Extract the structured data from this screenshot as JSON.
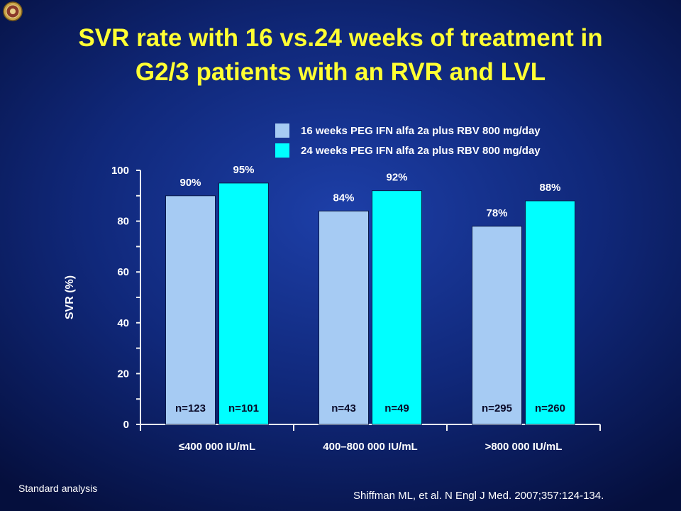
{
  "title": {
    "line1": "SVR rate with 16 vs.24 weeks of treatment in",
    "line2": "G2/3 patients with an RVR and LVL"
  },
  "colors": {
    "series1": "#a6cbf3",
    "series2": "#00ffff",
    "title": "#ffff33",
    "background": "#10287a"
  },
  "logo_icon": "seal-icon",
  "chart_data": {
    "type": "bar",
    "categories": [
      "≤400 000 IU/mL",
      "400–800 000 IU/mL",
      ">800 000 IU/mL"
    ],
    "series": [
      {
        "name": "16 weeks PEG IFN alfa 2a plus RBV 800 mg/day",
        "values": [
          90,
          84,
          78
        ],
        "labels": [
          "90%",
          "84%",
          "78%"
        ],
        "n_labels": [
          "n=123",
          "n=43",
          "n=295"
        ]
      },
      {
        "name": "24 weeks PEG IFN alfa 2a plus RBV 800 mg/day",
        "values": [
          95,
          92,
          88
        ],
        "labels": [
          "95%",
          "92%",
          "88%"
        ],
        "n_labels": [
          "n=101",
          "n=49",
          "n=260"
        ]
      }
    ],
    "ylabel": "SVR (%)",
    "xlabel": "",
    "ylim": [
      0,
      100
    ],
    "yticks": [
      "0",
      "20",
      "40",
      "60",
      "80",
      "100"
    ],
    "grid": false,
    "legend_position": "top-right"
  },
  "footnotes": {
    "left": "Standard analysis",
    "right": "Shiffman ML, et al. N Engl J Med. 2007;357:124-134."
  }
}
